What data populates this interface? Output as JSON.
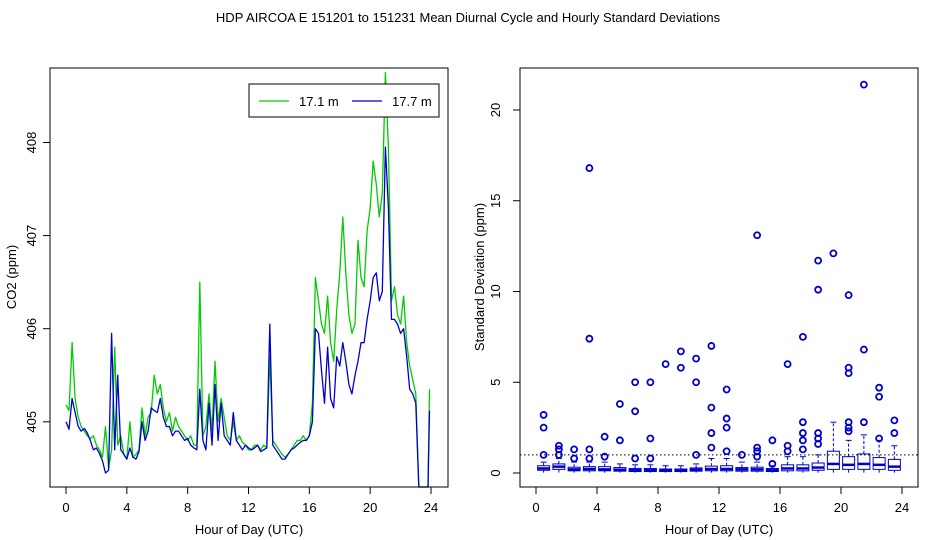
{
  "figure": {
    "title": "HDP   AIRCOA E   151201 to 151231   Mean Diurnal Cycle and Hourly Standard Deviations"
  },
  "chart_data": [
    {
      "type": "line",
      "xlabel": "Hour of Day (UTC)",
      "ylabel": "CO2 (ppm)",
      "xlim": [
        0,
        24
      ],
      "ylim": [
        404.3,
        408.8
      ],
      "xticks": [
        0,
        4,
        8,
        12,
        16,
        20,
        24
      ],
      "yticks": [
        405,
        406,
        407,
        408
      ],
      "grid": false,
      "legend": "top-right",
      "series": [
        {
          "name": "17.1 m",
          "color": "#00cc00",
          "x": [
            0,
            0.2,
            0.4,
            0.6,
            0.8,
            1.0,
            1.2,
            1.4,
            1.6,
            1.8,
            2.0,
            2.2,
            2.4,
            2.6,
            2.8,
            3.0,
            3.2,
            3.4,
            3.6,
            3.8,
            4.0,
            4.2,
            4.4,
            4.6,
            4.8,
            5.0,
            5.2,
            5.4,
            5.6,
            5.8,
            6.0,
            6.2,
            6.4,
            6.6,
            6.8,
            7.0,
            7.2,
            7.4,
            7.6,
            7.8,
            8.0,
            8.2,
            8.4,
            8.6,
            8.8,
            9.0,
            9.2,
            9.4,
            9.6,
            9.8,
            10.0,
            10.2,
            10.4,
            10.6,
            10.8,
            11.0,
            11.2,
            11.4,
            11.6,
            11.8,
            12.0,
            12.2,
            12.4,
            12.6,
            12.8,
            13.0,
            13.2,
            13.4,
            13.6,
            13.8,
            14.0,
            14.2,
            14.4,
            14.6,
            14.8,
            15.0,
            15.2,
            15.4,
            15.6,
            15.8,
            16.0,
            16.2,
            16.4,
            16.6,
            16.8,
            17.0,
            17.2,
            17.4,
            17.6,
            17.8,
            18.0,
            18.2,
            18.4,
            18.6,
            18.8,
            19.0,
            19.2,
            19.4,
            19.6,
            19.8,
            20.0,
            20.2,
            20.4,
            20.6,
            20.8,
            21.0,
            21.2,
            21.4,
            21.6,
            21.8,
            22.0,
            22.2,
            22.4,
            22.6,
            22.8,
            23.0,
            23.2,
            23.4,
            23.6,
            23.8
          ],
          "y": [
            405.18,
            405.12,
            405.85,
            405.25,
            405.05,
            404.95,
            404.9,
            404.85,
            404.82,
            404.85,
            404.75,
            404.7,
            404.62,
            404.95,
            404.5,
            404.7,
            405.8,
            404.75,
            404.85,
            404.65,
            404.6,
            405.0,
            404.62,
            404.65,
            404.7,
            405.15,
            404.85,
            405.05,
            405.1,
            405.5,
            405.3,
            405.4,
            405.15,
            405.0,
            405.1,
            404.9,
            405.05,
            404.95,
            404.9,
            404.85,
            404.8,
            404.85,
            404.75,
            404.75,
            406.5,
            404.85,
            404.95,
            405.3,
            404.9,
            405.65,
            405.0,
            405.25,
            405.05,
            404.85,
            404.8,
            405.0,
            404.8,
            404.85,
            404.78,
            404.75,
            404.7,
            404.7,
            404.75,
            404.75,
            404.7,
            404.75,
            404.72,
            405.7,
            404.8,
            404.75,
            404.7,
            404.65,
            404.62,
            404.65,
            404.7,
            404.75,
            404.8,
            404.8,
            404.85,
            404.8,
            404.85,
            405.2,
            406.55,
            406.3,
            406.05,
            405.95,
            406.35,
            405.85,
            405.65,
            406.2,
            406.6,
            407.2,
            406.6,
            406.15,
            405.95,
            406.05,
            406.95,
            406.55,
            406.45,
            407.05,
            407.3,
            407.8,
            407.55,
            407.2,
            407.45,
            408.75,
            407.95,
            406.3,
            406.45,
            406.15,
            406.05,
            406.35,
            405.85,
            405.6,
            405.45,
            405.3,
            404.3,
            404.3,
            404.3,
            404.3
          ],
          "end_x": 23.8
        },
        {
          "name": "17.7 m",
          "color": "#0000cc",
          "x": [
            0,
            0.2,
            0.4,
            0.6,
            0.8,
            1.0,
            1.2,
            1.4,
            1.6,
            1.8,
            2.0,
            2.2,
            2.4,
            2.6,
            2.8,
            3.0,
            3.2,
            3.4,
            3.6,
            3.8,
            4.0,
            4.2,
            4.4,
            4.6,
            4.8,
            5.0,
            5.2,
            5.4,
            5.6,
            5.8,
            6.0,
            6.2,
            6.4,
            6.6,
            6.8,
            7.0,
            7.2,
            7.4,
            7.6,
            7.8,
            8.0,
            8.2,
            8.4,
            8.6,
            8.8,
            9.0,
            9.2,
            9.4,
            9.6,
            9.8,
            10.0,
            10.2,
            10.4,
            10.6,
            10.8,
            11.0,
            11.2,
            11.4,
            11.6,
            11.8,
            12.0,
            12.2,
            12.4,
            12.6,
            12.8,
            13.0,
            13.2,
            13.4,
            13.6,
            13.8,
            14.0,
            14.2,
            14.4,
            14.6,
            14.8,
            15.0,
            15.2,
            15.4,
            15.6,
            15.8,
            16.0,
            16.2,
            16.4,
            16.6,
            16.8,
            17.0,
            17.2,
            17.4,
            17.6,
            17.8,
            18.0,
            18.2,
            18.4,
            18.6,
            18.8,
            19.0,
            19.2,
            19.4,
            19.6,
            19.8,
            20.0,
            20.2,
            20.4,
            20.6,
            20.8,
            21.0,
            21.2,
            21.4,
            21.6,
            21.8,
            22.0,
            22.2,
            22.4,
            22.6,
            22.8,
            23.0,
            23.2,
            23.4,
            23.6,
            23.8
          ],
          "y": [
            405.0,
            404.92,
            405.25,
            405.1,
            404.95,
            404.9,
            404.93,
            404.88,
            404.8,
            404.7,
            404.72,
            404.66,
            404.58,
            404.45,
            404.48,
            405.95,
            404.7,
            405.5,
            404.7,
            404.65,
            404.6,
            404.72,
            404.62,
            404.6,
            404.68,
            405.0,
            404.8,
            404.9,
            405.15,
            405.12,
            405.1,
            405.25,
            405.05,
            404.95,
            404.95,
            404.85,
            404.9,
            404.9,
            404.85,
            404.8,
            404.82,
            404.75,
            404.72,
            404.7,
            405.35,
            404.8,
            404.7,
            405.2,
            404.75,
            405.4,
            404.8,
            405.2,
            404.85,
            404.8,
            404.75,
            405.1,
            404.8,
            404.75,
            404.7,
            404.75,
            404.72,
            404.7,
            404.72,
            404.75,
            404.68,
            404.7,
            404.72,
            406.05,
            404.75,
            404.7,
            404.65,
            404.6,
            404.6,
            404.65,
            404.7,
            404.72,
            404.75,
            404.78,
            404.8,
            404.8,
            404.85,
            405.0,
            406.0,
            405.95,
            405.55,
            405.2,
            405.8,
            405.25,
            405.15,
            405.7,
            405.6,
            405.85,
            405.65,
            405.4,
            405.3,
            405.5,
            405.65,
            405.85,
            405.85,
            406.1,
            406.3,
            406.55,
            406.6,
            406.3,
            406.4,
            407.95,
            407.3,
            406.1,
            406.1,
            406.05,
            405.95,
            406.0,
            405.7,
            405.35,
            405.3,
            405.2,
            404.3,
            404.3,
            404.3,
            404.3
          ],
          "end_x": 23.8
        }
      ]
    },
    {
      "type": "boxplot",
      "xlabel": "Hour of Day (UTC)",
      "ylabel": "Standard Deviation (ppm)",
      "xlim": [
        0,
        24
      ],
      "ylim": [
        -0.8,
        22.4
      ],
      "xticks": [
        0,
        4,
        8,
        12,
        16,
        20,
        24
      ],
      "yticks": [
        0,
        5,
        10,
        15,
        20
      ],
      "reference_line": 1.0,
      "grid": false,
      "color": "#0000cc",
      "boxes": [
        {
          "x": 0.5,
          "q1": 0.15,
          "median": 0.25,
          "q3": 0.4,
          "whisker_high": 0.6,
          "outliers": [
            1.0,
            2.5,
            3.2
          ]
        },
        {
          "x": 1.5,
          "q1": 0.2,
          "median": 0.35,
          "q3": 0.5,
          "whisker_high": 0.8,
          "outliers": [
            1.0,
            1.3,
            1.5
          ]
        },
        {
          "x": 2.5,
          "q1": 0.12,
          "median": 0.2,
          "q3": 0.32,
          "whisker_high": 0.6,
          "outliers": [
            0.8,
            1.3
          ]
        },
        {
          "x": 3.5,
          "q1": 0.12,
          "median": 0.22,
          "q3": 0.35,
          "whisker_high": 0.6,
          "outliers": [
            0.8,
            1.3,
            7.4,
            16.8
          ]
        },
        {
          "x": 4.5,
          "q1": 0.12,
          "median": 0.2,
          "q3": 0.35,
          "whisker_high": 0.6,
          "outliers": [
            0.9,
            2.0
          ]
        },
        {
          "x": 5.5,
          "q1": 0.1,
          "median": 0.18,
          "q3": 0.3,
          "whisker_high": 0.5,
          "outliers": [
            1.8,
            3.8
          ]
        },
        {
          "x": 6.5,
          "q1": 0.08,
          "median": 0.15,
          "q3": 0.25,
          "whisker_high": 0.45,
          "outliers": [
            0.8,
            3.4,
            5.0
          ]
        },
        {
          "x": 7.5,
          "q1": 0.08,
          "median": 0.15,
          "q3": 0.25,
          "whisker_high": 0.45,
          "outliers": [
            0.8,
            1.9,
            5.0
          ]
        },
        {
          "x": 8.5,
          "q1": 0.08,
          "median": 0.14,
          "q3": 0.22,
          "whisker_high": 0.4,
          "outliers": [
            6.0
          ]
        },
        {
          "x": 9.5,
          "q1": 0.08,
          "median": 0.14,
          "q3": 0.22,
          "whisker_high": 0.4,
          "outliers": [
            5.8,
            6.7
          ]
        },
        {
          "x": 10.5,
          "q1": 0.1,
          "median": 0.18,
          "q3": 0.28,
          "whisker_high": 0.5,
          "outliers": [
            1.0,
            5.0,
            6.3
          ]
        },
        {
          "x": 11.5,
          "q1": 0.12,
          "median": 0.22,
          "q3": 0.38,
          "whisker_high": 0.8,
          "outliers": [
            1.4,
            2.2,
            3.6,
            7.0
          ]
        },
        {
          "x": 12.5,
          "q1": 0.12,
          "median": 0.22,
          "q3": 0.4,
          "whisker_high": 0.8,
          "outliers": [
            1.2,
            2.5,
            3.0,
            4.6
          ]
        },
        {
          "x": 13.5,
          "q1": 0.1,
          "median": 0.2,
          "q3": 0.3,
          "whisker_high": 0.6,
          "outliers": [
            1.0
          ]
        },
        {
          "x": 14.5,
          "q1": 0.1,
          "median": 0.2,
          "q3": 0.32,
          "whisker_high": 0.6,
          "outliers": [
            0.9,
            1.2,
            1.4,
            13.1
          ]
        },
        {
          "x": 15.5,
          "q1": 0.08,
          "median": 0.15,
          "q3": 0.25,
          "whisker_high": 0.4,
          "outliers": [
            0.5,
            1.8
          ]
        },
        {
          "x": 16.5,
          "q1": 0.12,
          "median": 0.25,
          "q3": 0.45,
          "whisker_high": 0.9,
          "outliers": [
            1.2,
            1.5,
            6.0
          ]
        },
        {
          "x": 17.5,
          "q1": 0.12,
          "median": 0.25,
          "q3": 0.45,
          "whisker_high": 0.9,
          "outliers": [
            1.3,
            1.8,
            2.2,
            2.8,
            7.5
          ]
        },
        {
          "x": 18.5,
          "q1": 0.15,
          "median": 0.3,
          "q3": 0.55,
          "whisker_high": 1.0,
          "outliers": [
            1.6,
            1.9,
            2.2,
            10.1,
            11.7
          ]
        },
        {
          "x": 19.5,
          "q1": 0.2,
          "median": 0.5,
          "q3": 1.2,
          "whisker_high": 2.8,
          "outliers": [
            12.1
          ]
        },
        {
          "x": 20.5,
          "q1": 0.2,
          "median": 0.45,
          "q3": 0.9,
          "whisker_high": 1.8,
          "outliers": [
            2.3,
            2.5,
            2.8,
            5.5,
            5.8,
            9.8
          ]
        },
        {
          "x": 21.5,
          "q1": 0.2,
          "median": 0.5,
          "q3": 1.05,
          "whisker_high": 2.1,
          "outliers": [
            2.8,
            6.8,
            21.4
          ]
        },
        {
          "x": 22.5,
          "q1": 0.2,
          "median": 0.45,
          "q3": 0.85,
          "whisker_high": 1.8,
          "outliers": [
            1.9,
            4.2,
            4.7
          ]
        },
        {
          "x": 23.5,
          "q1": 0.15,
          "median": 0.35,
          "q3": 0.75,
          "whisker_high": 1.5,
          "outliers": [
            2.2,
            2.9
          ]
        }
      ]
    }
  ]
}
